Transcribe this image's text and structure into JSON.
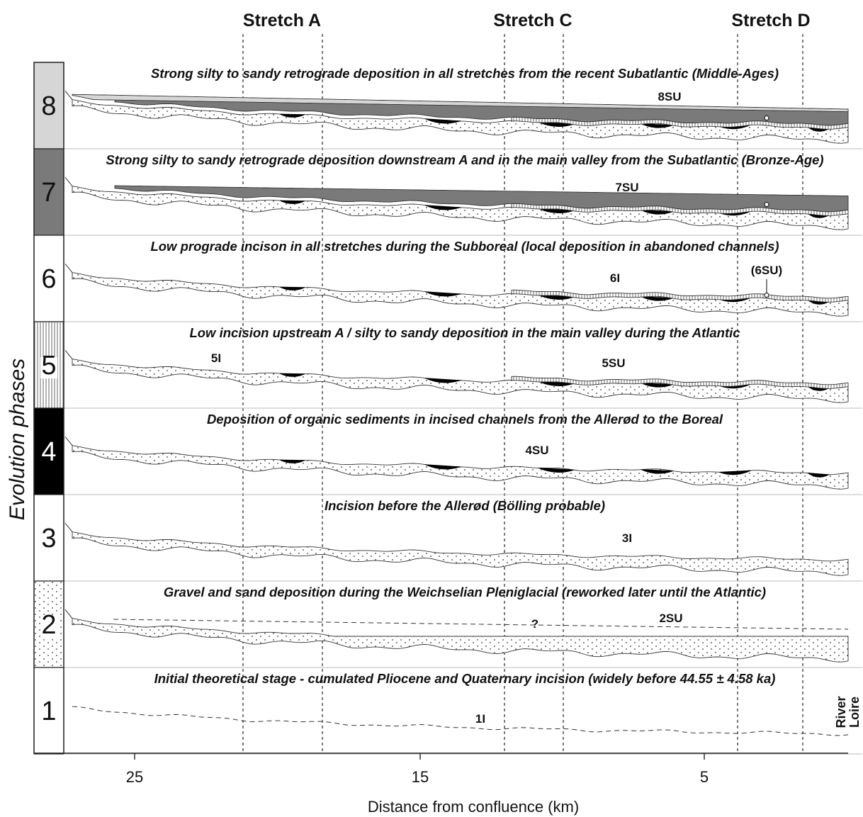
{
  "stretches": [
    "Stretch A",
    "Stretch C",
    "Stretch D"
  ],
  "y_axis_label": "Evolution phases",
  "x_axis": {
    "label": "Distance from confluence (km)",
    "ticks": [
      "25",
      "15",
      "5"
    ]
  },
  "river_label": [
    "River",
    "Loire"
  ],
  "phases": [
    {
      "number": "8",
      "title": "Strong silty to sandy retrograde deposition in all stretches from the recent Subatlantic (Middle-Ages)",
      "units": [
        "8SU"
      ],
      "swatch": "light-grey"
    },
    {
      "number": "7",
      "title": "Strong silty to sandy retrograde deposition downstream A and in the main valley from the Subatlantic (Bronze-Age)",
      "units": [
        "7SU"
      ],
      "swatch": "dark-grey"
    },
    {
      "number": "6",
      "title": "Low prograde incison in all stretches during the Subboreal (local deposition in abandoned channels)",
      "units": [
        "6I",
        "(6SU)"
      ],
      "swatch": "white"
    },
    {
      "number": "5",
      "title": "Low incision upstream A / silty to sandy deposition in the main valley during the Atlantic",
      "units": [
        "5I",
        "5SU"
      ],
      "swatch": "vertical-hatch"
    },
    {
      "number": "4",
      "title": "Deposition of organic sediments in incised channels from the Allerød to the Boreal",
      "units": [
        "4SU"
      ],
      "swatch": "black"
    },
    {
      "number": "3",
      "title": "Incision before the Allerød (Bölling probable)",
      "units": [
        "3I"
      ],
      "swatch": "white"
    },
    {
      "number": "2",
      "title": "Gravel and sand deposition during the Weichselian Pleniglacial (reworked later until the Atlantic)",
      "units": [
        "?",
        "2SU"
      ],
      "swatch": "stipple"
    },
    {
      "number": "1",
      "title": "Initial theoretical stage - cumulated Pliocene and Quaternary incision (widely before 44.55 ± 4.58 ka)",
      "units": [
        "1I"
      ],
      "swatch": "white"
    }
  ],
  "colors": {
    "light_grey": "#d6d6d6",
    "mid_grey": "#aaaaaa",
    "dark_grey": "#7a7a7a",
    "organic_black": "#000000",
    "line": "#222222"
  }
}
